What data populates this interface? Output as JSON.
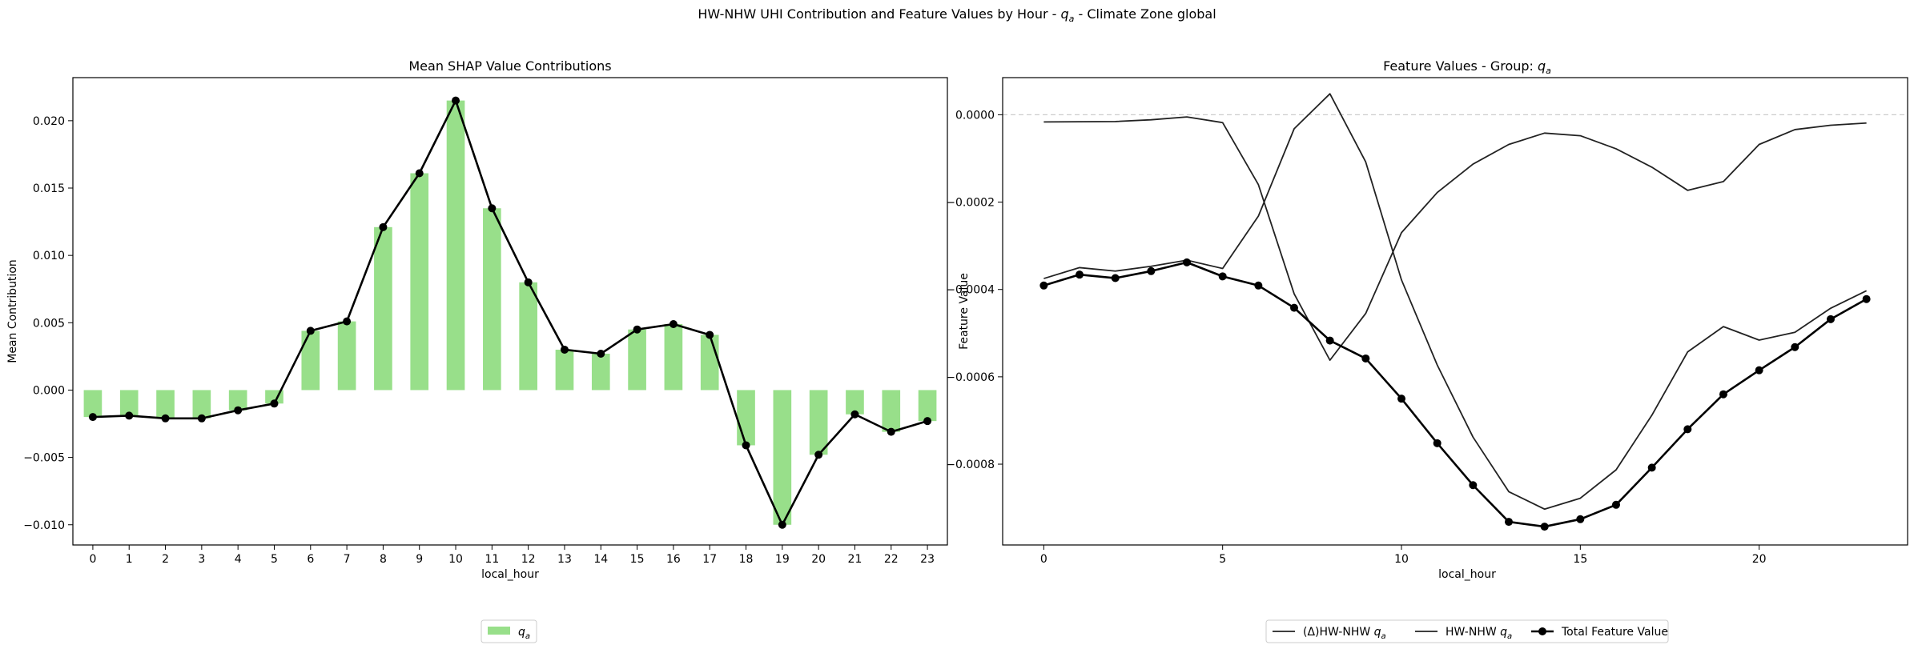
{
  "figure": {
    "title_prefix": "HW-NHW UHI Contribution and Feature Values by Hour - ",
    "title_var": "q",
    "title_var_sub": "a",
    "title_suffix": " - Climate Zone global"
  },
  "chart_data": [
    {
      "type": "bar",
      "title": "Mean SHAP Value Contributions",
      "xlabel": "local_hour",
      "ylabel": "Mean Contribution",
      "categories": [
        "0",
        "1",
        "2",
        "3",
        "4",
        "5",
        "6",
        "7",
        "8",
        "9",
        "10",
        "11",
        "12",
        "13",
        "14",
        "15",
        "16",
        "17",
        "18",
        "19",
        "20",
        "21",
        "22",
        "23"
      ],
      "series": [
        {
          "name": "q",
          "name_sub": "a",
          "color": "#98df8a",
          "values": [
            -0.002,
            -0.0019,
            -0.0021,
            -0.0021,
            -0.0015,
            -0.001,
            0.0044,
            0.0051,
            0.0121,
            0.0161,
            0.0215,
            0.0135,
            0.008,
            0.003,
            0.0027,
            0.0045,
            0.0049,
            0.0041,
            -0.0041,
            -0.01,
            -0.0048,
            -0.0018,
            -0.0031,
            -0.0023
          ]
        }
      ],
      "line": {
        "color": "#000000",
        "values": [
          -0.002,
          -0.0019,
          -0.0021,
          -0.0021,
          -0.0015,
          -0.001,
          0.0044,
          0.0051,
          0.0121,
          0.0161,
          0.0215,
          0.0135,
          0.008,
          0.003,
          0.0027,
          0.0045,
          0.0049,
          0.0041,
          -0.0041,
          -0.01,
          -0.0048,
          -0.0018,
          -0.0031,
          -0.0023
        ]
      },
      "ylim": [
        -0.0115,
        0.0232
      ],
      "yticks": [
        -0.01,
        -0.005,
        0.0,
        0.005,
        0.01,
        0.015,
        0.02
      ],
      "ytick_labels": [
        "−0.010",
        "−0.005",
        "0.000",
        "0.005",
        "0.010",
        "0.015",
        "0.020"
      ],
      "grid": false,
      "legend_position": "bottom-center"
    },
    {
      "type": "line",
      "title_prefix": "Feature Values - Group: ",
      "title_var": "q",
      "title_var_sub": "a",
      "xlabel": "local_hour",
      "ylabel": "Feature Value",
      "x": [
        0,
        1,
        2,
        3,
        4,
        5,
        6,
        7,
        8,
        9,
        10,
        11,
        12,
        13,
        14,
        15,
        16,
        17,
        18,
        19,
        20,
        21,
        22,
        23
      ],
      "xlim": [
        -1.15,
        24.15
      ],
      "ylim": [
        -0.000985,
        8.5e-05
      ],
      "xticks": [
        0,
        5,
        10,
        15,
        20
      ],
      "xtick_labels": [
        "0",
        "5",
        "10",
        "15",
        "20"
      ],
      "yticks": [
        0.0,
        -0.0002,
        -0.0004,
        -0.0006,
        -0.0008
      ],
      "ytick_labels": [
        "0.0000",
        "−0.0002",
        "−0.0004",
        "−0.0006",
        "−0.0008"
      ],
      "reference_line": 0.0,
      "legend_position": "bottom-center",
      "series": [
        {
          "name_prefix": "(Δ)HW-NHW ",
          "name_var": "q",
          "name_sub": "a",
          "color": "#222222",
          "markers": false,
          "values": [
            -1.65e-05,
            -1.6e-05,
            -1.55e-05,
            -1.15e-05,
            -5e-06,
            -1.8e-05,
            -0.00016,
            -0.00041,
            -0.000562,
            -0.000455,
            -0.00027,
            -0.000178,
            -0.000113,
            -6.8e-05,
            -4.2e-05,
            -4.8e-05,
            -7.8e-05,
            -0.00012,
            -0.000173,
            -0.000153,
            -6.8e-05,
            -3.4e-05,
            -2.4e-05,
            -1.9e-05
          ]
        },
        {
          "name_prefix": "HW-NHW ",
          "name_var": "q",
          "name_sub": "a",
          "color": "#222222",
          "markers": false,
          "values": [
            -0.000375,
            -0.00035,
            -0.000358,
            -0.000347,
            -0.000333,
            -0.000352,
            -0.000232,
            -3.2e-05,
            4.8e-05,
            -0.000108,
            -0.000378,
            -0.000573,
            -0.000738,
            -0.000863,
            -0.000903,
            -0.000878,
            -0.000813,
            -0.000688,
            -0.000543,
            -0.000485,
            -0.000516,
            -0.000498,
            -0.000443,
            -0.000403
          ]
        },
        {
          "name": "Total Feature Value",
          "color": "#000000",
          "markers": true,
          "values": [
            -0.000391,
            -0.000366,
            -0.000374,
            -0.000358,
            -0.000338,
            -0.00037,
            -0.000391,
            -0.000442,
            -0.000517,
            -0.000558,
            -0.00065,
            -0.000752,
            -0.000848,
            -0.000932,
            -0.000943,
            -0.000926,
            -0.000893,
            -0.000808,
            -0.00072,
            -0.00064,
            -0.000585,
            -0.000532,
            -0.000468,
            -0.000422
          ]
        }
      ]
    }
  ]
}
